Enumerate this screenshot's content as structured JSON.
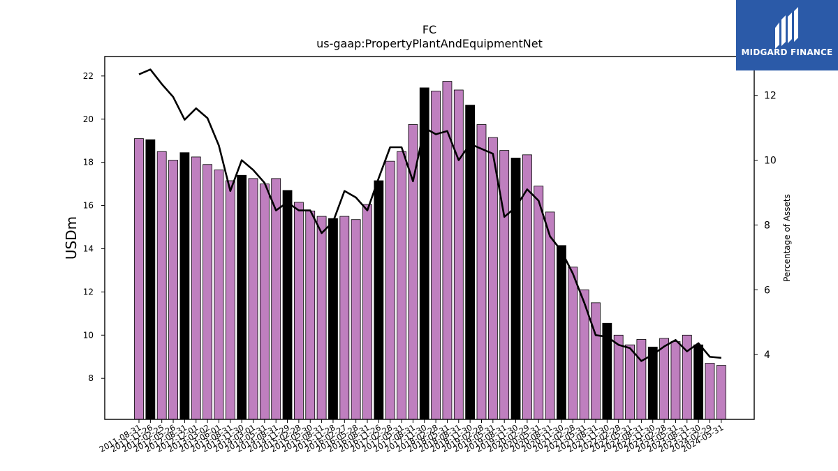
{
  "chart_data": {
    "type": "bar",
    "title": "FC",
    "subtitle": "us-gaap:PropertyPlantAndEquipmentNet",
    "ylabel": "USDm",
    "y2label": "Percentage of Assets",
    "ylim": [
      6.1,
      22.9
    ],
    "y2lim": [
      2.0,
      13.2
    ],
    "yticks": [
      8,
      10,
      12,
      14,
      16,
      18,
      20,
      22
    ],
    "y2ticks": [
      4,
      6,
      8,
      10,
      12
    ],
    "categories": [
      "2011-08-31",
      "2011-11-26",
      "2012-02-25",
      "2012-05-26",
      "2012-08-31",
      "2012-12-01",
      "2013-03-02",
      "2013-06-01",
      "2013-08-31",
      "2013-11-30",
      "2014-03-01",
      "2014-05-31",
      "2014-08-31",
      "2014-11-29",
      "2015-02-28",
      "2015-05-30",
      "2015-08-31",
      "2015-11-28",
      "2016-02-27",
      "2016-05-28",
      "2016-08-31",
      "2016-11-26",
      "2017-02-28",
      "2017-05-31",
      "2017-08-31",
      "2017-11-30",
      "2018-02-28",
      "2018-05-31",
      "2018-08-31",
      "2018-11-30",
      "2019-02-28",
      "2019-05-31",
      "2019-08-31",
      "2019-11-30",
      "2020-02-29",
      "2020-05-31",
      "2020-08-31",
      "2020-11-30",
      "2021-02-28",
      "2021-05-31",
      "2021-08-31",
      "2021-11-30",
      "2022-02-28",
      "2022-05-31",
      "2022-08-31",
      "2022-11-30",
      "2023-02-28",
      "2023-05-31",
      "2023-08-31",
      "2023-11-30",
      "2024-02-29",
      "2024-05-31"
    ],
    "series": [
      {
        "name": "",
        "kind": "bar",
        "axis": "left",
        "values": [
          19.1,
          19.05,
          18.5,
          18.1,
          18.45,
          18.25,
          17.9,
          17.65,
          17.15,
          17.4,
          17.25,
          17.0,
          17.25,
          16.7,
          16.15,
          15.75,
          15.5,
          15.4,
          15.5,
          15.35,
          16.05,
          17.15,
          18.05,
          18.5,
          19.75,
          21.45,
          21.3,
          21.75,
          21.35,
          20.65,
          19.75,
          19.15,
          18.55,
          18.2,
          18.35,
          16.9,
          15.7,
          14.15,
          13.15,
          12.1,
          11.5,
          10.55,
          10.0,
          9.55,
          9.8,
          9.45,
          9.85,
          9.7,
          10.0,
          9.55,
          8.7,
          8.6
        ]
      },
      {
        "name": "",
        "kind": "line",
        "axis": "right",
        "values": [
          12.65,
          12.8,
          12.35,
          11.95,
          11.25,
          11.6,
          11.3,
          10.45,
          9.05,
          10.0,
          9.7,
          9.3,
          8.45,
          8.7,
          8.45,
          8.45,
          7.75,
          8.1,
          9.05,
          8.85,
          8.45,
          9.45,
          10.4,
          10.4,
          9.35,
          11.0,
          10.8,
          10.9,
          10.0,
          10.5,
          10.35,
          10.2,
          8.25,
          8.55,
          9.1,
          8.75,
          7.65,
          7.2,
          6.5,
          5.6,
          4.6,
          4.55,
          4.3,
          4.2,
          3.8,
          4.0,
          4.25,
          4.45,
          4.1,
          4.35,
          3.93,
          3.9
        ]
      }
    ],
    "highlight_indices": [
      1,
      4,
      9,
      13,
      17,
      21,
      25,
      29,
      33,
      37,
      41,
      45,
      49
    ],
    "colors": {
      "bar": "#bf7fbf",
      "bar_highlight": "#000000",
      "bar_edge": "#000000",
      "line": "#000000"
    },
    "grid": false,
    "legend": "none"
  },
  "logo": {
    "text": "MIDGARD FINANCE",
    "background": "#2b5aa8"
  }
}
